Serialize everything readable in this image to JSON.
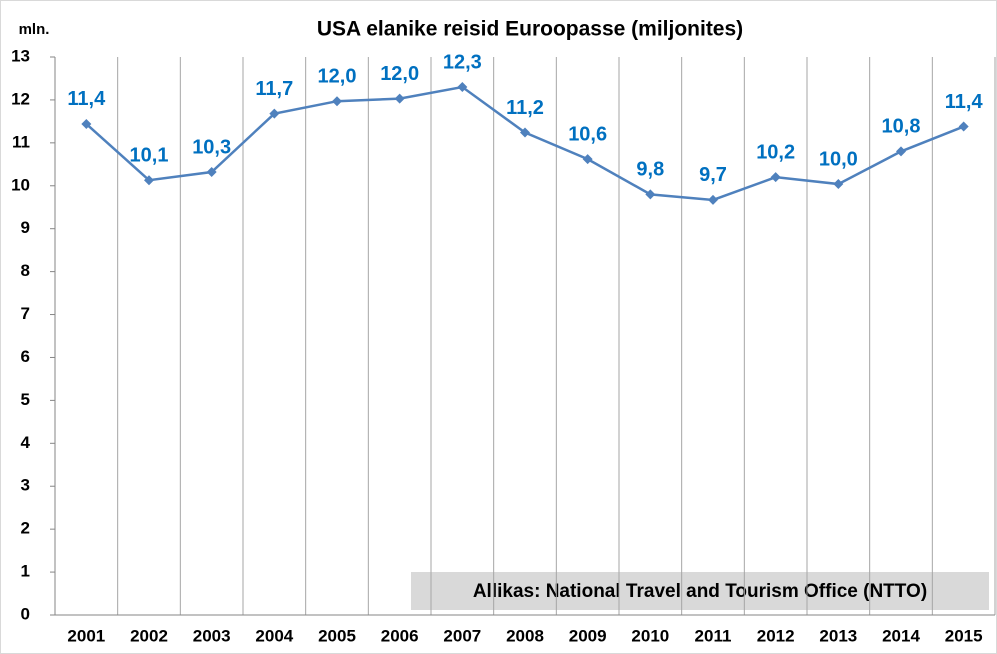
{
  "chart_data": {
    "type": "line",
    "title": "USA elanike reisid Euroopasse (miljonites)",
    "y_axis_label": "mln.",
    "annotation": "Allikas: National Travel and Tourism Office (NTTO)",
    "categories": [
      "2001",
      "2002",
      "2003",
      "2004",
      "2005",
      "2006",
      "2007",
      "2008",
      "2009",
      "2010",
      "2011",
      "2012",
      "2013",
      "2014",
      "2015"
    ],
    "series": [
      {
        "name": "USA elanike reisid Euroopasse",
        "color": "#4f81bd",
        "values": [
          11.44,
          10.13,
          10.32,
          11.68,
          11.97,
          12.03,
          12.3,
          11.24,
          10.62,
          9.8,
          9.67,
          10.2,
          10.04,
          10.8,
          11.38
        ],
        "value_labels": [
          "11,4",
          "10,1",
          "10,3",
          "11,7",
          "12,0",
          "12,0",
          "12,3",
          "11,2",
          "10,6",
          "9,8",
          "9,7",
          "10,2",
          "10,0",
          "10,8",
          "11,4"
        ]
      }
    ],
    "label_color": "#0070c0",
    "ylim": [
      0,
      13
    ],
    "yticks": [
      0,
      1,
      2,
      3,
      4,
      5,
      6,
      7,
      8,
      9,
      10,
      11,
      12,
      13
    ],
    "vertical_grid": true
  }
}
